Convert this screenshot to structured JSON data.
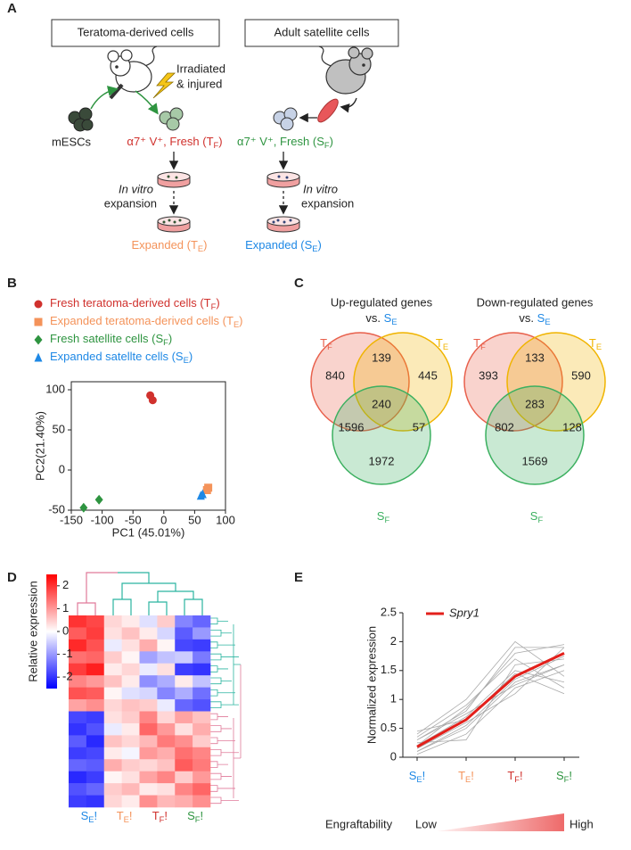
{
  "panel_labels": [
    "A",
    "B",
    "C",
    "D",
    "E"
  ],
  "panel_a": {
    "boxes": [
      "Teratoma-derived cells",
      "Adult satellite cells"
    ],
    "irradiated": "Irradiated",
    "injured": "& injured",
    "mescs": "mESCs",
    "fresh_t": {
      "text": "α7⁺ V⁺, Fresh (T",
      "sub": "F",
      "end": ")"
    },
    "fresh_s": {
      "text": "α7⁺ V⁺, Fresh (S",
      "sub": "F",
      "end": ")"
    },
    "in_vitro": [
      "In vitro",
      "In vitro"
    ],
    "expansion": [
      "expansion",
      "expansion"
    ],
    "expanded_t": {
      "text": "Expanded (T",
      "sub": "E",
      "end": ")"
    },
    "expanded_s": {
      "text": "Expanded (S",
      "sub": "E",
      "end": ")"
    }
  },
  "chart_data": [
    {
      "type": "scatter",
      "xlabel": "PC1 (45.01%)",
      "ylabel": "PC2(21.40%)",
      "xlim": [
        -150,
        100
      ],
      "ylim": [
        -50,
        110
      ],
      "xticks": [
        -150,
        -100,
        -50,
        0,
        50,
        100
      ],
      "yticks": [
        -50,
        0,
        50,
        100
      ],
      "series": [
        {
          "name": {
            "text": "Fresh teratoma-derived cells (T",
            "sub": "F",
            "end": ")"
          },
          "color": "#d0312d",
          "marker": "circle",
          "x": [
            -22,
            -18
          ],
          "values": [
            93,
            87
          ]
        },
        {
          "name": {
            "text": "Expanded teratoma-derived cells (T",
            "sub": "E",
            "end": ")"
          },
          "color": "#f4935a",
          "marker": "square",
          "x": [
            72,
            70
          ],
          "values": [
            -22,
            -25
          ]
        },
        {
          "name": {
            "text": "Fresh satellite cells (S",
            "sub": "F",
            "end": ")"
          },
          "color": "#2e9440",
          "marker": "diamond",
          "x": [
            -130,
            -105
          ],
          "values": [
            -47,
            -37
          ]
        },
        {
          "name": {
            "text": "Expanded satellte cells (S",
            "sub": "E",
            "end": ")"
          },
          "color": "#1e88e5",
          "marker": "triangle",
          "x": [
            63,
            60
          ],
          "values": [
            -30,
            -32
          ]
        }
      ]
    },
    {
      "type": "venn",
      "title": "Up-regulated genes",
      "subtitle": {
        "pre": "vs. ",
        "text": "S",
        "sub": "E"
      },
      "subtitle_color": "#1e88e5",
      "sets": [
        {
          "name": {
            "text": "T",
            "sub": "F"
          },
          "color": "#e8604c"
        },
        {
          "name": {
            "text": "T",
            "sub": "E"
          },
          "color": "#f0b400"
        },
        {
          "name": {
            "text": "S",
            "sub": "F"
          },
          "color": "#3cb060"
        }
      ],
      "values": [
        840,
        139,
        445,
        1596,
        240,
        57,
        1972
      ]
    },
    {
      "type": "venn",
      "title": "Down-regulated genes",
      "subtitle": {
        "pre": "vs. ",
        "text": "S",
        "sub": "E"
      },
      "subtitle_color": "#1e88e5",
      "sets": [
        {
          "name": {
            "text": "T",
            "sub": "F"
          },
          "color": "#e8604c"
        },
        {
          "name": {
            "text": "T",
            "sub": "E"
          },
          "color": "#f0b400"
        },
        {
          "name": {
            "text": "S",
            "sub": "F"
          },
          "color": "#3cb060"
        }
      ],
      "values": [
        393,
        133,
        590,
        802,
        283,
        128,
        1569
      ]
    },
    {
      "type": "heatmap",
      "colorbar_label": "Relative expression",
      "clim": [
        -2.5,
        2.5
      ],
      "cticks": [
        2,
        1,
        0,
        -1,
        -2
      ],
      "categories": [
        {
          "text": "S",
          "sub": "E",
          "end": "!"
        },
        {
          "text": "T",
          "sub": "E",
          "end": "!"
        },
        {
          "text": "T",
          "sub": "F",
          "end": "!"
        },
        {
          "text": "S",
          "sub": "F",
          "end": "!"
        }
      ],
      "label_colors": [
        "#1e88e5",
        "#f4935a",
        "#d0312d",
        "#2e9440"
      ],
      "values": [
        [
          2.0,
          1.8,
          0.4,
          0.2,
          -0.3,
          0.5,
          -1.2,
          -1.5
        ],
        [
          1.6,
          1.9,
          0.3,
          0.6,
          0.2,
          -0.4,
          -1.6,
          -1.0
        ],
        [
          2.1,
          1.7,
          -0.2,
          0.3,
          0.8,
          0.1,
          -1.8,
          -1.9
        ],
        [
          1.4,
          1.5,
          0.5,
          0.1,
          -0.9,
          -0.6,
          -0.5,
          -1.3
        ],
        [
          1.9,
          2.2,
          0.2,
          0.4,
          -0.2,
          0.3,
          -1.9,
          -2.0
        ],
        [
          1.2,
          1.0,
          0.6,
          0.2,
          -1.1,
          -0.8,
          0.2,
          -0.6
        ],
        [
          1.7,
          1.6,
          0.1,
          -0.3,
          -0.4,
          -1.2,
          -0.8,
          -1.4
        ],
        [
          0.9,
          1.1,
          0.4,
          0.6,
          0.5,
          -0.2,
          -1.5,
          -1.7
        ],
        [
          -1.8,
          -1.9,
          0.3,
          0.5,
          1.2,
          0.4,
          0.9,
          0.6
        ],
        [
          -2.0,
          -1.7,
          -0.2,
          0.2,
          1.5,
          1.0,
          0.3,
          0.8
        ],
        [
          -1.6,
          -2.1,
          0.6,
          0.4,
          0.7,
          1.3,
          1.1,
          0.5
        ],
        [
          -1.9,
          -1.8,
          0.2,
          -0.1,
          1.0,
          0.8,
          1.4,
          1.2
        ],
        [
          -1.5,
          -1.6,
          0.8,
          0.5,
          0.4,
          0.6,
          1.6,
          1.3
        ],
        [
          -2.1,
          -1.9,
          0.1,
          0.3,
          0.9,
          1.2,
          0.5,
          1.0
        ],
        [
          -1.7,
          -1.5,
          0.5,
          0.7,
          0.2,
          0.3,
          1.2,
          1.5
        ],
        [
          -1.9,
          -2.0,
          0.4,
          0.2,
          1.1,
          0.7,
          0.8,
          1.1
        ]
      ]
    },
    {
      "type": "line",
      "ylabel": "Normalized expression",
      "ylim": [
        0,
        2.5
      ],
      "yticks": [
        0,
        0.5,
        1,
        1.5,
        2,
        2.5
      ],
      "categories": [
        {
          "text": "S",
          "sub": "E",
          "end": "!"
        },
        {
          "text": "T",
          "sub": "E",
          "end": "!"
        },
        {
          "text": "T",
          "sub": "F",
          "end": "!"
        },
        {
          "text": "S",
          "sub": "F",
          "end": "!"
        }
      ],
      "label_colors": [
        "#1e88e5",
        "#f4935a",
        "#d0312d",
        "#2e9440"
      ],
      "series": [
        {
          "color": "#aaaaaa",
          "values": [
            0.1,
            0.5,
            1.3,
            1.6
          ]
        },
        {
          "color": "#aaaaaa",
          "values": [
            0.3,
            0.8,
            1.9,
            1.9
          ]
        },
        {
          "color": "#aaaaaa",
          "values": [
            0.2,
            0.7,
            1.5,
            1.3
          ]
        },
        {
          "color": "#aaaaaa",
          "values": [
            0.05,
            0.4,
            1.2,
            1.5
          ]
        },
        {
          "color": "#aaaaaa",
          "values": [
            0.35,
            0.9,
            1.7,
            1.2
          ]
        },
        {
          "color": "#aaaaaa",
          "values": [
            0.15,
            0.6,
            1.1,
            1.9
          ]
        },
        {
          "color": "#aaaaaa",
          "values": [
            0.25,
            0.3,
            1.6,
            1.7
          ]
        },
        {
          "color": "#aaaaaa",
          "values": [
            0.4,
            1.0,
            2.0,
            1.4
          ]
        },
        {
          "color": "#aaaaaa",
          "values": [
            0.1,
            0.55,
            1.35,
            1.75
          ]
        },
        {
          "color": "#aaaaaa",
          "values": [
            0.3,
            0.75,
            1.25,
            1.6
          ]
        },
        {
          "color": "#aaaaaa",
          "values": [
            0.2,
            0.85,
            1.8,
            1.95
          ]
        },
        {
          "color": "#aaaaaa",
          "values": [
            0.45,
            0.65,
            1.45,
            1.1
          ]
        },
        {
          "name": "Spry1",
          "color": "#e3201b",
          "values": [
            0.18,
            0.65,
            1.4,
            1.8
          ]
        }
      ],
      "annotations": {
        "engraftability": "Engraftability",
        "low": "Low",
        "high": "High"
      }
    }
  ]
}
